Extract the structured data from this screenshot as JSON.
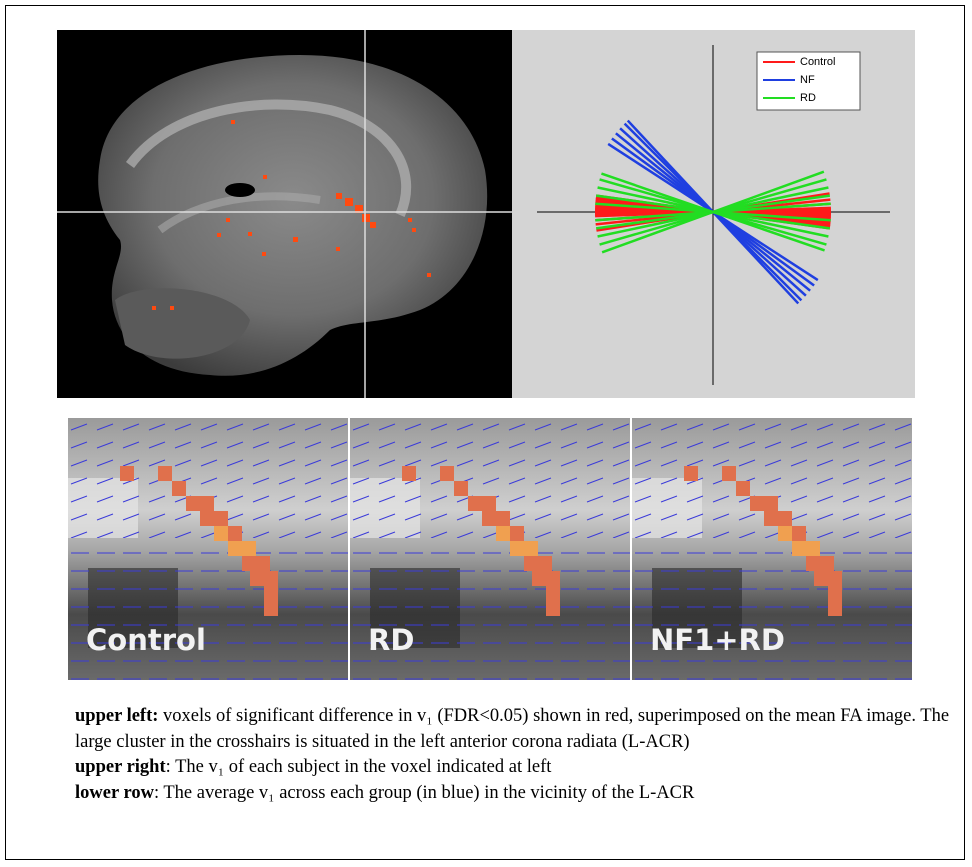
{
  "upper_right": {
    "series": [
      {
        "name": "Control",
        "color": "#ff1a1a",
        "angles": [
          -9,
          -6,
          -4,
          -2,
          -1,
          0,
          1,
          2,
          3,
          4,
          5,
          6,
          7,
          8
        ]
      },
      {
        "name": "NF",
        "color": "#1f3fe0",
        "angles": [
          33,
          36,
          39,
          42,
          45,
          47
        ]
      },
      {
        "name": "RD",
        "color": "#22dd22",
        "angles": [
          -20,
          -16,
          -12,
          -8,
          -4,
          4,
          8,
          12,
          16,
          19
        ]
      }
    ]
  },
  "lower_row": {
    "panels": [
      "Control",
      "RD",
      "NF1+RD"
    ]
  },
  "caption": [
    {
      "label": "upper left:",
      "text": " voxels of significant difference in v₁ (FDR<0.05) shown in red, superimposed on the mean FA image. The large cluster in the crosshairs is situated in the left anterior corona radiata (L-ACR)"
    },
    {
      "label": "upper right",
      "text": ": The v₁ of each subject in the voxel indicated at left"
    },
    {
      "label": "lower row",
      "text": ": The average v₁ across each group (in blue) in the vicinity of the L-ACR"
    }
  ]
}
